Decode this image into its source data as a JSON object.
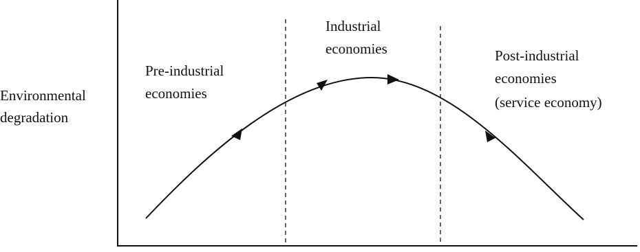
{
  "y_axis_label": {
    "lines": [
      "Environmental",
      "degradation"
    ]
  },
  "regions": [
    {
      "lines": [
        "Pre-industrial",
        "economies"
      ]
    },
    {
      "lines": [
        "Industrial",
        "economies"
      ]
    },
    {
      "lines": [
        "Post-industrial",
        "economies",
        "(service economy)"
      ]
    }
  ]
}
